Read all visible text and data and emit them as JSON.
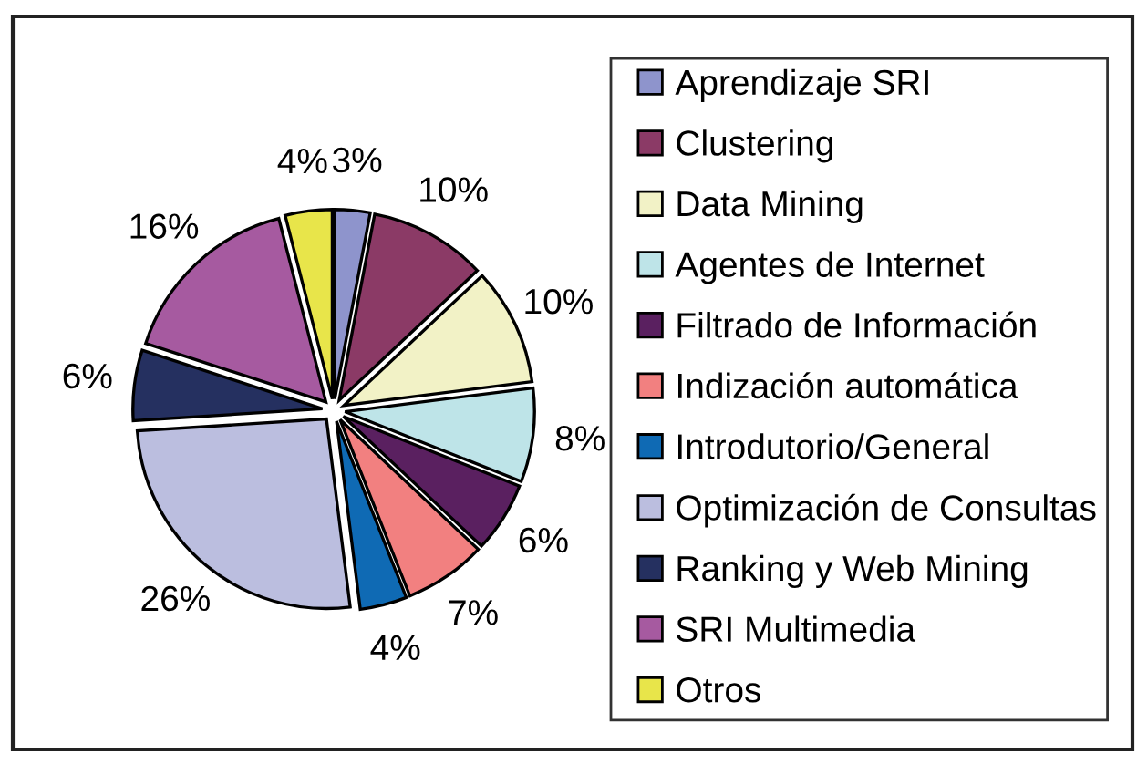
{
  "chart_data": {
    "type": "pie",
    "categories": [
      "Aprendizaje SRI",
      "Clustering",
      "Data Mining",
      "Agentes de Internet",
      "Filtrado de Información",
      "Indización automática",
      "Introdutorio/General",
      "Optimización de Consultas",
      "Ranking y Web Mining",
      "SRI Multimedia",
      "Otros"
    ],
    "values": [
      3,
      10,
      10,
      8,
      6,
      7,
      4,
      26,
      6,
      16,
      4
    ],
    "colors": [
      "#8e94cc",
      "#8b3a66",
      "#f2f2c6",
      "#bee4e8",
      "#5a2060",
      "#f28080",
      "#0f6ab4",
      "#bbbedf",
      "#253060",
      "#a65aa0",
      "#e8e54a"
    ],
    "value_labels": [
      "3%",
      "10%",
      "10%",
      "8%",
      "6%",
      "7%",
      "4%",
      "26%",
      "6%",
      "16%",
      "4%"
    ],
    "legend": "right"
  }
}
